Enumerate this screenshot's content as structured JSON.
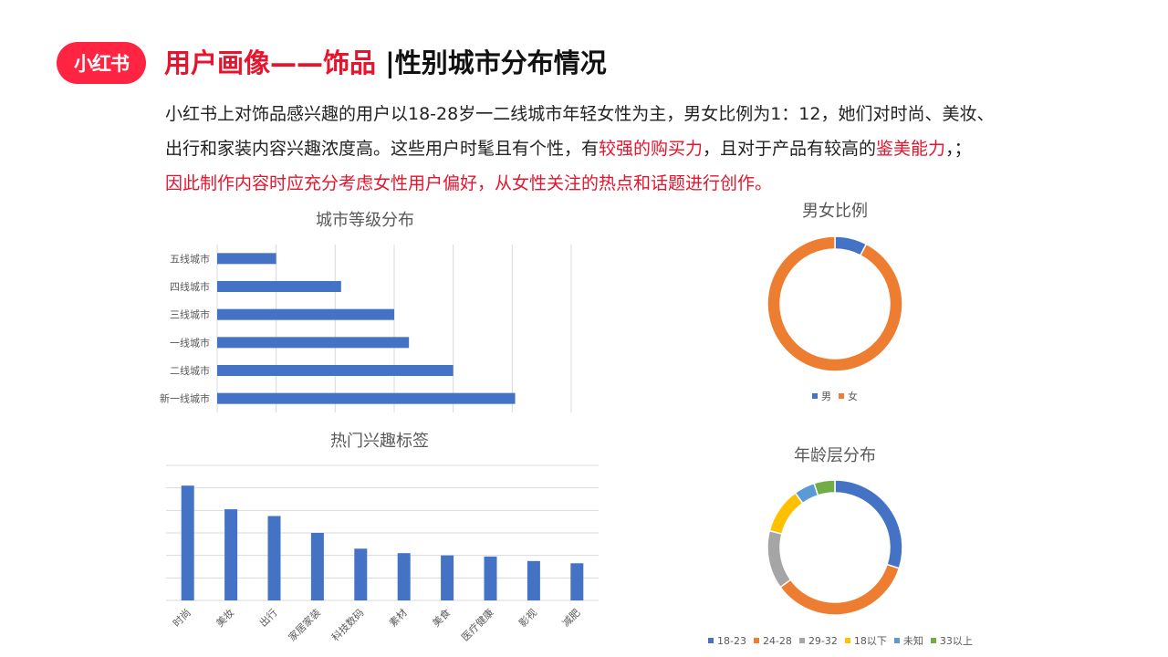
{
  "header": {
    "logo_text": "小红书",
    "title_red": "用户画像——饰品",
    "title_black": "|性别城市分布情况"
  },
  "description": {
    "line1": "小红书上对饰品感兴趣的用户以18-28岁一二线城市年轻女性为主，男女比例为1：12，她们对时尚、美妆、",
    "line2_a": "出行和家装内容兴趣浓度高。这些用户时髦且有个性，有",
    "line2_hl1": "较强的购买力",
    "line2_b": "，且对于产品有较高的",
    "line2_hl2": "鉴美能力",
    "line2_c": "，；",
    "line3": "因此制作内容时应充分考虑女性用户偏好，从女性关注的热点和话题进行创作。"
  },
  "colors": {
    "brand": "#ff2442",
    "title_red": "#e8132c",
    "bar_blue": "#4472c4",
    "orange": "#ed7d31",
    "gray": "#a5a5a5",
    "gold": "#ffc000",
    "light_blue": "#5b9bd5",
    "green": "#70ad47"
  },
  "chart_data": [
    {
      "id": "city",
      "type": "bar",
      "orientation": "horizontal",
      "title": "城市等级分布",
      "categories": [
        "五线城市",
        "四线城市",
        "三线城市",
        "一线城市",
        "二线城市",
        "新一线城市"
      ],
      "values": [
        10,
        21,
        30,
        32.5,
        40,
        50.5
      ],
      "xlim": [
        0,
        60
      ],
      "grid": true
    },
    {
      "id": "gender",
      "type": "pie",
      "donut": true,
      "title": "男女比例",
      "labels": [
        "男",
        "女"
      ],
      "values": [
        1,
        12
      ],
      "colors": [
        "#4472c4",
        "#ed7d31"
      ],
      "legend": "bottom"
    },
    {
      "id": "interests",
      "type": "bar",
      "orientation": "vertical",
      "title": "热门兴趣标签",
      "categories": [
        "时尚",
        "美妆",
        "出行",
        "家居家装",
        "科技数码",
        "素材",
        "美食",
        "医疗健康",
        "影视",
        "减肥"
      ],
      "values": [
        5.1,
        4.05,
        3.75,
        3.0,
        2.3,
        2.1,
        2.0,
        1.95,
        1.75,
        1.65
      ],
      "ylim": [
        0,
        6
      ],
      "grid": true
    },
    {
      "id": "age",
      "type": "pie",
      "donut": true,
      "title": "年龄层分布",
      "labels": [
        "18-23",
        "24-28",
        "29-32",
        "18以下",
        "未知",
        "33以上"
      ],
      "values": [
        30,
        35,
        14,
        11,
        5,
        5
      ],
      "colors": [
        "#4472c4",
        "#ed7d31",
        "#a5a5a5",
        "#ffc000",
        "#5b9bd5",
        "#70ad47"
      ],
      "legend": "bottom"
    }
  ]
}
